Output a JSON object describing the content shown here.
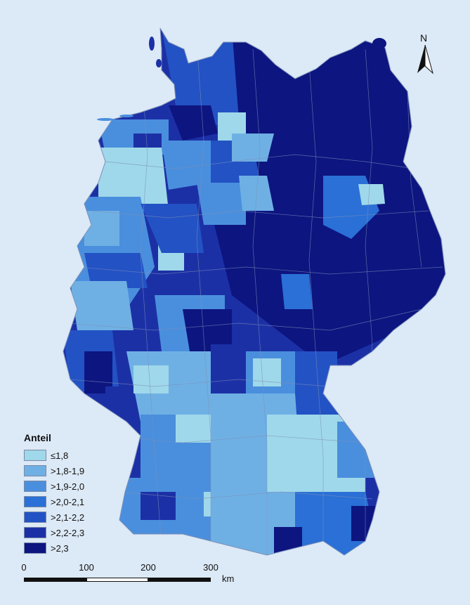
{
  "legend": {
    "title": "Anteil",
    "items": [
      {
        "label": "≤1,8",
        "color": "#9fd8ea"
      },
      {
        "label": ">1,8-1,9",
        "color": "#6fb0e4"
      },
      {
        "label": ">1,9-2,0",
        "color": "#4a8fdd"
      },
      {
        "label": ">2,0-2,1",
        "color": "#2a70d6"
      },
      {
        "label": ">2,1-2,2",
        "color": "#2352c4"
      },
      {
        "label": ">2,2-2,3",
        "color": "#1c30a6"
      },
      {
        "label": ">2,3",
        "color": "#0d1580"
      }
    ]
  },
  "north": {
    "letter": "N"
  },
  "scalebar": {
    "ticks": [
      "0",
      "100",
      "200",
      "300"
    ],
    "unit": "km"
  },
  "colors": {
    "background": "#dce9f6",
    "boundary": "#7b8fb8"
  }
}
